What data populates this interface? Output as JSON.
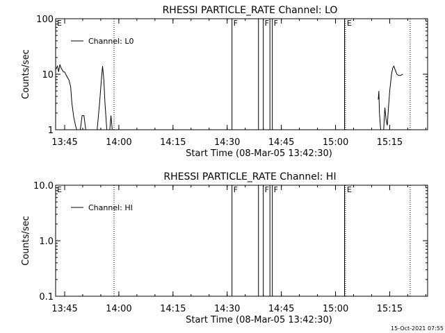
{
  "footer": {
    "timestamp": "15-Oct-2021 07:55"
  },
  "chart_data": [
    {
      "type": "line",
      "title": "RHESSI PARTICLE_RATE Channel: LO",
      "xlabel": "Start Time (08-Mar-05 13:42:30)",
      "ylabel": "Counts/sec",
      "yscale": "log",
      "ylim": [
        1,
        100
      ],
      "xlim": [
        "13:42:30",
        "15:25:30"
      ],
      "x_ticks": [
        "13:45",
        "14:00",
        "14:15",
        "14:30",
        "14:45",
        "15:00",
        "15:15"
      ],
      "y_ticks": [
        {
          "value": 1,
          "label": "1"
        },
        {
          "value": 10,
          "label": "10"
        },
        {
          "value": 100,
          "label": "100"
        }
      ],
      "legend": {
        "label": "Channel: L0",
        "position": "top-left"
      },
      "flag_lines": [
        {
          "time": "13:42:30",
          "style": "solid",
          "label": "E"
        },
        {
          "time": "13:58:40",
          "style": "dotted",
          "label": ""
        },
        {
          "time": "14:31:20",
          "style": "solid",
          "label": "F"
        },
        {
          "time": "14:38:40",
          "style": "solid",
          "label": ""
        },
        {
          "time": "14:40:00",
          "style": "solid",
          "label": "F"
        },
        {
          "time": "14:41:50",
          "style": "solid",
          "label": ""
        },
        {
          "time": "14:42:30",
          "style": "solid",
          "label": "F"
        },
        {
          "time": "15:02:30",
          "style": "solid",
          "label": ""
        },
        {
          "time": "15:02:45",
          "style": "dotted",
          "label": "E"
        },
        {
          "time": "15:20:40",
          "style": "dotted",
          "label": ""
        }
      ],
      "series": [
        {
          "segments": [
            [
              [
                "13:42:30",
                12
              ],
              [
                "13:43:00",
                14
              ],
              [
                "13:43:20",
                11
              ],
              [
                "13:43:40",
                15
              ],
              [
                "13:44:00",
                13
              ],
              [
                "13:44:20",
                12
              ],
              [
                "13:44:40",
                11
              ],
              [
                "13:45:00",
                11
              ],
              [
                "13:45:40",
                9
              ],
              [
                "13:46:10",
                8
              ],
              [
                "13:46:40",
                6
              ],
              [
                "13:47:00",
                3
              ],
              [
                "13:47:30",
                1.7
              ],
              [
                "13:48:00",
                1.2
              ],
              [
                "13:48:20",
                1
              ]
            ],
            [
              [
                "13:49:20",
                1
              ],
              [
                "13:49:50",
                1.8
              ],
              [
                "13:50:20",
                1.8
              ],
              [
                "13:50:50",
                1
              ]
            ],
            [
              [
                "13:54:00",
                1
              ],
              [
                "13:54:40",
                3
              ],
              [
                "13:55:10",
                8
              ],
              [
                "13:55:30",
                14
              ],
              [
                "13:55:50",
                8
              ],
              [
                "13:56:10",
                3
              ],
              [
                "13:56:40",
                1
              ]
            ],
            [
              [
                "13:57:30",
                1
              ],
              [
                "13:57:50",
                1.8
              ],
              [
                "13:58:10",
                1
              ]
            ],
            [
              [
                "15:11:50",
                3.5
              ],
              [
                "15:12:00",
                5
              ],
              [
                "15:12:10",
                2
              ],
              [
                "15:12:30",
                1
              ]
            ],
            [
              [
                "15:13:20",
                1
              ],
              [
                "15:13:40",
                2.5
              ],
              [
                "15:14:00",
                1.5
              ],
              [
                "15:14:20",
                1.2
              ],
              [
                "15:14:40",
                2.5
              ],
              [
                "15:15:00",
                5
              ],
              [
                "15:15:30",
                10
              ],
              [
                "15:15:50",
                13
              ],
              [
                "15:16:10",
                14
              ],
              [
                "15:16:30",
                12
              ],
              [
                "15:17:00",
                10
              ],
              [
                "15:17:30",
                9.5
              ],
              [
                "15:18:00",
                9.5
              ],
              [
                "15:18:40",
                10
              ]
            ]
          ]
        }
      ]
    },
    {
      "type": "line",
      "title": "RHESSI PARTICLE_RATE Channel: HI",
      "xlabel": "Start Time (08-Mar-05 13:42:30)",
      "ylabel": "Counts/sec",
      "yscale": "log",
      "ylim": [
        0.1,
        10
      ],
      "xlim": [
        "13:42:30",
        "15:25:30"
      ],
      "x_ticks": [
        "13:45",
        "14:00",
        "14:15",
        "14:30",
        "14:45",
        "15:00",
        "15:15"
      ],
      "y_ticks": [
        {
          "value": 0.1,
          "label": "0.1"
        },
        {
          "value": 1,
          "label": "1.0"
        },
        {
          "value": 10,
          "label": "10.0"
        }
      ],
      "legend": {
        "label": "Channel: HI",
        "position": "top-left"
      },
      "flag_lines": [
        {
          "time": "13:42:30",
          "style": "solid",
          "label": "E"
        },
        {
          "time": "13:58:40",
          "style": "dotted",
          "label": ""
        },
        {
          "time": "14:31:20",
          "style": "solid",
          "label": "F"
        },
        {
          "time": "14:38:40",
          "style": "solid",
          "label": ""
        },
        {
          "time": "14:40:00",
          "style": "solid",
          "label": "F"
        },
        {
          "time": "14:41:50",
          "style": "solid",
          "label": ""
        },
        {
          "time": "14:42:30",
          "style": "solid",
          "label": "F"
        },
        {
          "time": "15:02:30",
          "style": "solid",
          "label": ""
        },
        {
          "time": "15:02:45",
          "style": "dotted",
          "label": "E"
        },
        {
          "time": "15:20:40",
          "style": "dotted",
          "label": ""
        }
      ],
      "series": [
        {
          "segments": []
        }
      ]
    }
  ]
}
